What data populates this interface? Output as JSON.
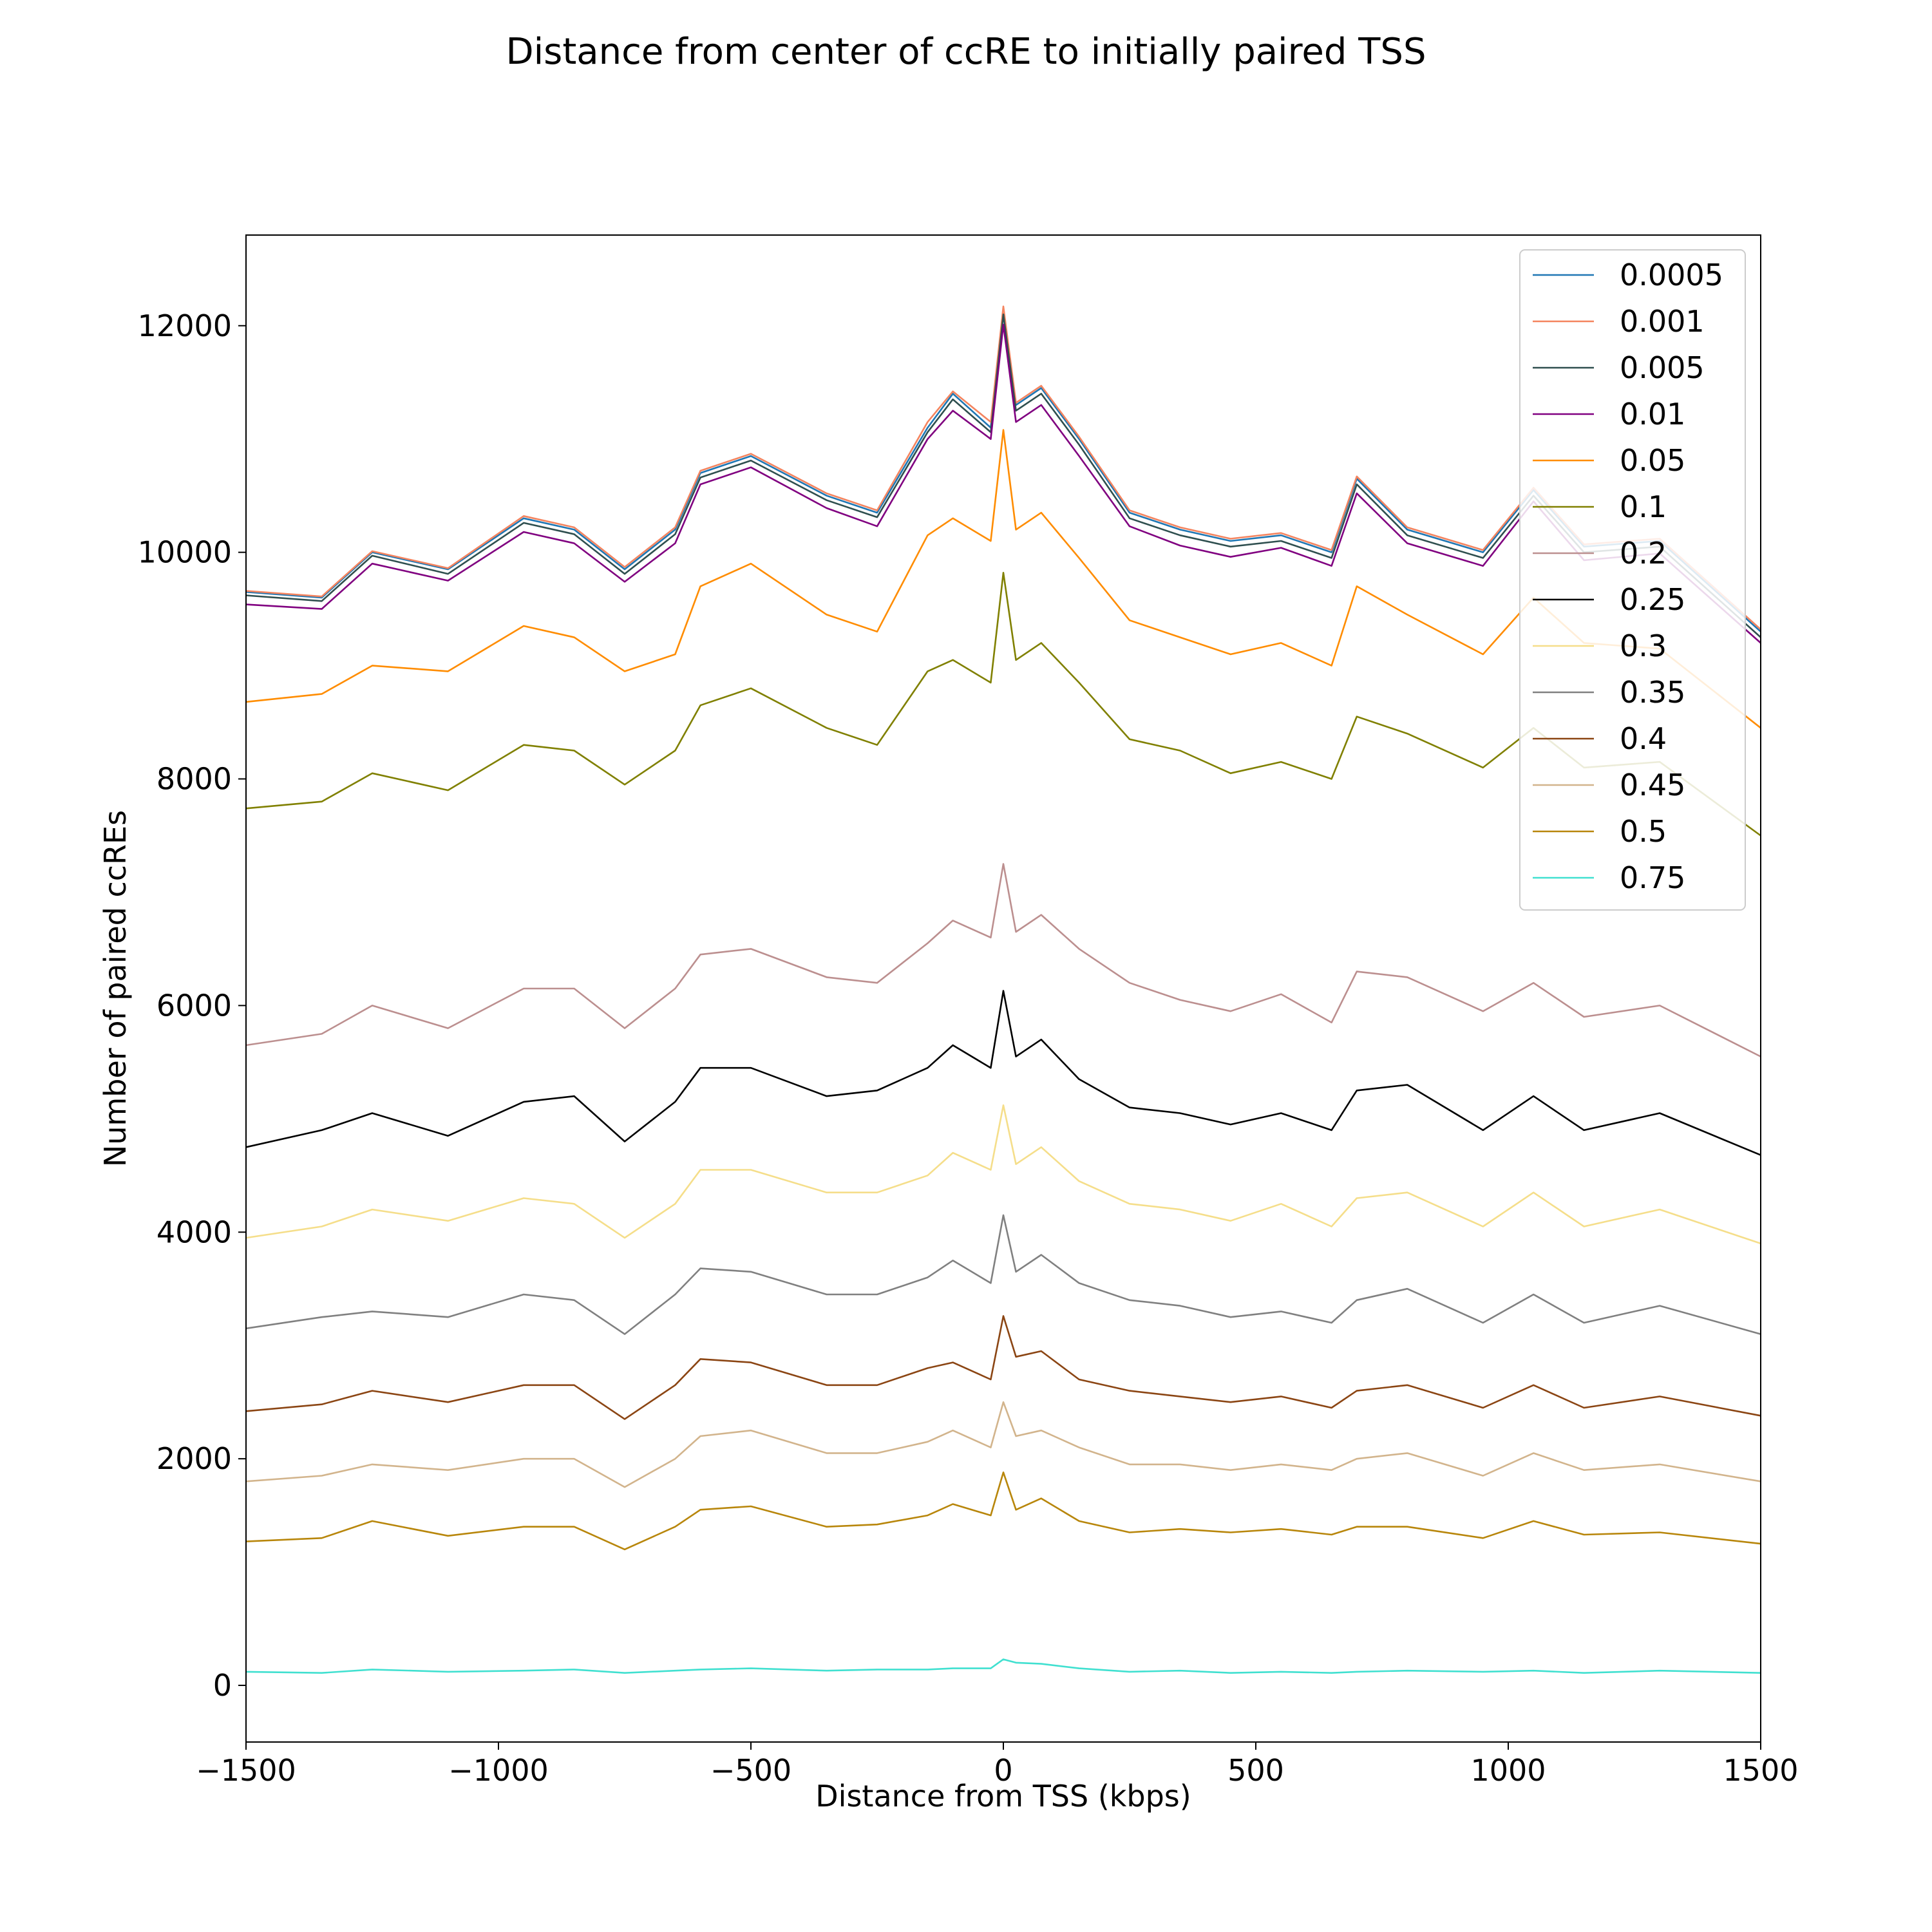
{
  "chart_data": {
    "type": "line",
    "title": "Distance from center of ccRE to initially paired TSS",
    "xlabel": "Distance from TSS (kbps)",
    "ylabel": "Number of paired ccREs",
    "xlim": [
      -1500,
      1500
    ],
    "ylim": [
      -500,
      12800
    ],
    "xticks": [
      -1500,
      -1000,
      -500,
      0,
      500,
      1000,
      1500
    ],
    "xtick_labels": [
      "−1500",
      "−1000",
      "−500",
      "0",
      "500",
      "1000",
      "1500"
    ],
    "yticks": [
      0,
      2000,
      4000,
      6000,
      8000,
      10000,
      12000
    ],
    "ytick_labels": [
      "0",
      "2000",
      "4000",
      "6000",
      "8000",
      "10000",
      "12000"
    ],
    "legend_position": "top-right",
    "x": [
      -1500,
      -1350,
      -1250,
      -1100,
      -950,
      -850,
      -750,
      -650,
      -600,
      -500,
      -350,
      -250,
      -150,
      -100,
      -25,
      0,
      25,
      75,
      150,
      250,
      350,
      450,
      550,
      650,
      700,
      800,
      950,
      1050,
      1150,
      1300,
      1500
    ],
    "series": [
      {
        "name": "0.0005",
        "color": "#1f77b4",
        "values": [
          9650,
          9600,
          10000,
          9850,
          10300,
          10200,
          9850,
          10200,
          10700,
          10850,
          10500,
          10350,
          11100,
          11400,
          11100,
          12150,
          11300,
          11450,
          11000,
          10350,
          10200,
          10100,
          10150,
          10000,
          10650,
          10200,
          10000,
          10550,
          10050,
          10100,
          9300
        ]
      },
      {
        "name": "0.001",
        "color": "#f4845f",
        "values": [
          9660,
          9610,
          10010,
          9860,
          10320,
          10220,
          9870,
          10220,
          10720,
          10870,
          10520,
          10370,
          11150,
          11420,
          11150,
          12170,
          11320,
          11470,
          11020,
          10370,
          10220,
          10120,
          10170,
          10020,
          10670,
          10220,
          10020,
          10570,
          10070,
          10120,
          9320
        ]
      },
      {
        "name": "0.005",
        "color": "#2f4f4f",
        "values": [
          9620,
          9570,
          9970,
          9810,
          10260,
          10160,
          9810,
          10160,
          10660,
          10810,
          10460,
          10310,
          11060,
          11350,
          11060,
          12100,
          11250,
          11400,
          10950,
          10300,
          10150,
          10050,
          10100,
          9950,
          10600,
          10150,
          9950,
          10500,
          10000,
          10050,
          9250
        ]
      },
      {
        "name": "0.01",
        "color": "#800080",
        "values": [
          9540,
          9500,
          9900,
          9750,
          10180,
          10080,
          9740,
          10080,
          10600,
          10750,
          10390,
          10230,
          11000,
          11250,
          11000,
          12010,
          11150,
          11300,
          10850,
          10230,
          10060,
          9960,
          10040,
          9880,
          10520,
          10080,
          9880,
          10450,
          9930,
          9990,
          9200
        ]
      },
      {
        "name": "0.05",
        "color": "#ff8c00",
        "values": [
          8680,
          8750,
          9000,
          8950,
          9350,
          9250,
          8950,
          9100,
          9700,
          9900,
          9450,
          9300,
          10150,
          10300,
          10100,
          11080,
          10200,
          10350,
          9950,
          9400,
          9250,
          9100,
          9200,
          9000,
          9700,
          9450,
          9100,
          9600,
          9200,
          9150,
          8450
        ]
      },
      {
        "name": "0.1",
        "color": "#808000",
        "values": [
          7740,
          7800,
          8050,
          7900,
          8300,
          8250,
          7950,
          8250,
          8650,
          8800,
          8450,
          8300,
          8950,
          9050,
          8850,
          9820,
          9050,
          9200,
          8850,
          8350,
          8250,
          8050,
          8150,
          8000,
          8550,
          8400,
          8100,
          8450,
          8100,
          8150,
          7500
        ]
      },
      {
        "name": "0.2",
        "color": "#bc8f8f",
        "values": [
          5650,
          5750,
          6000,
          5800,
          6150,
          6150,
          5800,
          6150,
          6450,
          6500,
          6250,
          6200,
          6550,
          6750,
          6600,
          7250,
          6650,
          6800,
          6500,
          6200,
          6050,
          5950,
          6100,
          5850,
          6300,
          6250,
          5950,
          6200,
          5900,
          6000,
          5550
        ]
      },
      {
        "name": "0.25",
        "color": "#000000",
        "values": [
          4750,
          4900,
          5050,
          4850,
          5150,
          5200,
          4800,
          5150,
          5450,
          5450,
          5200,
          5250,
          5450,
          5650,
          5450,
          6130,
          5550,
          5700,
          5350,
          5100,
          5050,
          4950,
          5050,
          4900,
          5250,
          5300,
          4900,
          5200,
          4900,
          5050,
          4680
        ]
      },
      {
        "name": "0.3",
        "color": "#f5de8a",
        "values": [
          3950,
          4050,
          4200,
          4100,
          4300,
          4250,
          3950,
          4250,
          4550,
          4550,
          4350,
          4350,
          4500,
          4700,
          4550,
          5120,
          4600,
          4750,
          4450,
          4250,
          4200,
          4100,
          4250,
          4050,
          4300,
          4350,
          4050,
          4350,
          4050,
          4200,
          3900
        ]
      },
      {
        "name": "0.35",
        "color": "#808080",
        "values": [
          3150,
          3250,
          3300,
          3250,
          3450,
          3400,
          3100,
          3450,
          3680,
          3650,
          3450,
          3450,
          3600,
          3750,
          3550,
          4150,
          3650,
          3800,
          3550,
          3400,
          3350,
          3250,
          3300,
          3200,
          3400,
          3500,
          3200,
          3450,
          3200,
          3350,
          3100
        ]
      },
      {
        "name": "0.4",
        "color": "#8b4513",
        "values": [
          2420,
          2480,
          2600,
          2500,
          2650,
          2650,
          2350,
          2650,
          2880,
          2850,
          2650,
          2650,
          2800,
          2850,
          2700,
          3260,
          2900,
          2950,
          2700,
          2600,
          2550,
          2500,
          2550,
          2450,
          2600,
          2650,
          2450,
          2650,
          2450,
          2550,
          2380
        ]
      },
      {
        "name": "0.45",
        "color": "#d2b48c",
        "values": [
          1800,
          1850,
          1950,
          1900,
          2000,
          2000,
          1750,
          2000,
          2200,
          2250,
          2050,
          2050,
          2150,
          2250,
          2100,
          2500,
          2200,
          2250,
          2100,
          1950,
          1950,
          1900,
          1950,
          1900,
          2000,
          2050,
          1850,
          2050,
          1900,
          1950,
          1800
        ]
      },
      {
        "name": "0.5",
        "color": "#b8860b",
        "values": [
          1270,
          1300,
          1450,
          1320,
          1400,
          1400,
          1200,
          1400,
          1550,
          1580,
          1400,
          1420,
          1500,
          1600,
          1500,
          1880,
          1550,
          1650,
          1450,
          1350,
          1380,
          1350,
          1380,
          1330,
          1400,
          1400,
          1300,
          1450,
          1330,
          1350,
          1250
        ]
      },
      {
        "name": "0.75",
        "color": "#40e0d0",
        "values": [
          120,
          110,
          140,
          120,
          130,
          140,
          110,
          130,
          140,
          150,
          130,
          140,
          140,
          150,
          150,
          230,
          200,
          190,
          150,
          120,
          130,
          110,
          120,
          110,
          120,
          130,
          120,
          130,
          110,
          130,
          110
        ]
      }
    ]
  }
}
